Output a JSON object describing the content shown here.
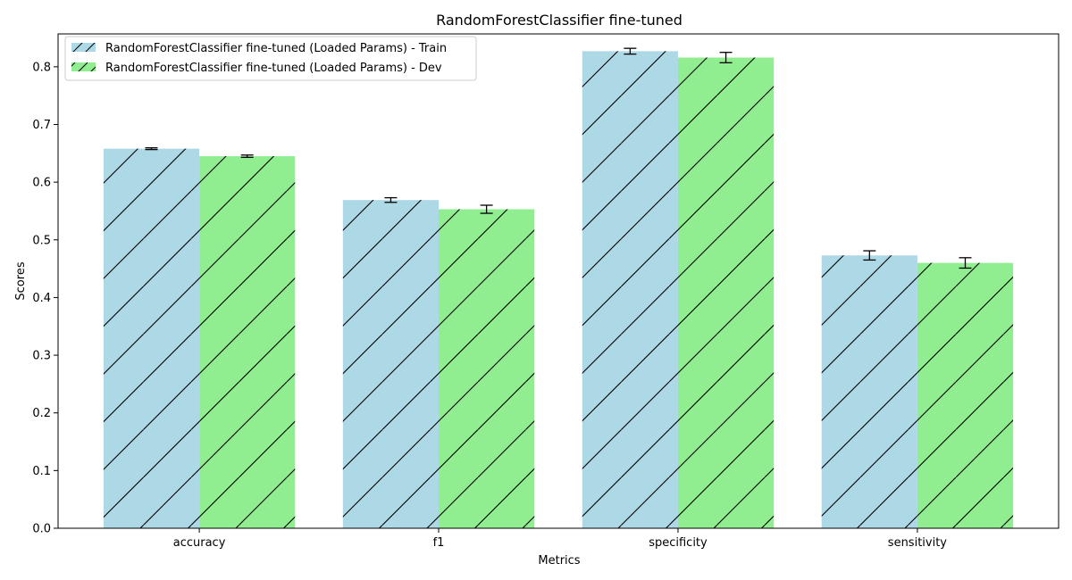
{
  "chart_data": {
    "type": "bar",
    "title": "RandomForestClassifier fine-tuned",
    "xlabel": "Metrics",
    "ylabel": "Scores",
    "categories": [
      "accuracy",
      "f1",
      "specificity",
      "sensitivity"
    ],
    "ylim": [
      0,
      0.857
    ],
    "yticks": [
      0.0,
      0.1,
      0.2,
      0.3,
      0.4,
      0.5,
      0.6,
      0.7,
      0.8
    ],
    "ytick_labels": [
      "0.0",
      "0.1",
      "0.2",
      "0.3",
      "0.4",
      "0.5",
      "0.6",
      "0.7",
      "0.8"
    ],
    "grid": false,
    "legend_position": "top-left",
    "hatch": "diagonal",
    "series": [
      {
        "name": "RandomForestClassifier fine-tuned (Loaded Params) - Train",
        "color": "#add8e6",
        "values": [
          0.658,
          0.569,
          0.827,
          0.473
        ],
        "errors": [
          0.0015,
          0.004,
          0.005,
          0.008
        ]
      },
      {
        "name": "RandomForestClassifier fine-tuned (Loaded Params) - Dev",
        "color": "#90ee90",
        "values": [
          0.645,
          0.553,
          0.816,
          0.46
        ],
        "errors": [
          0.002,
          0.007,
          0.009,
          0.009
        ]
      }
    ]
  }
}
